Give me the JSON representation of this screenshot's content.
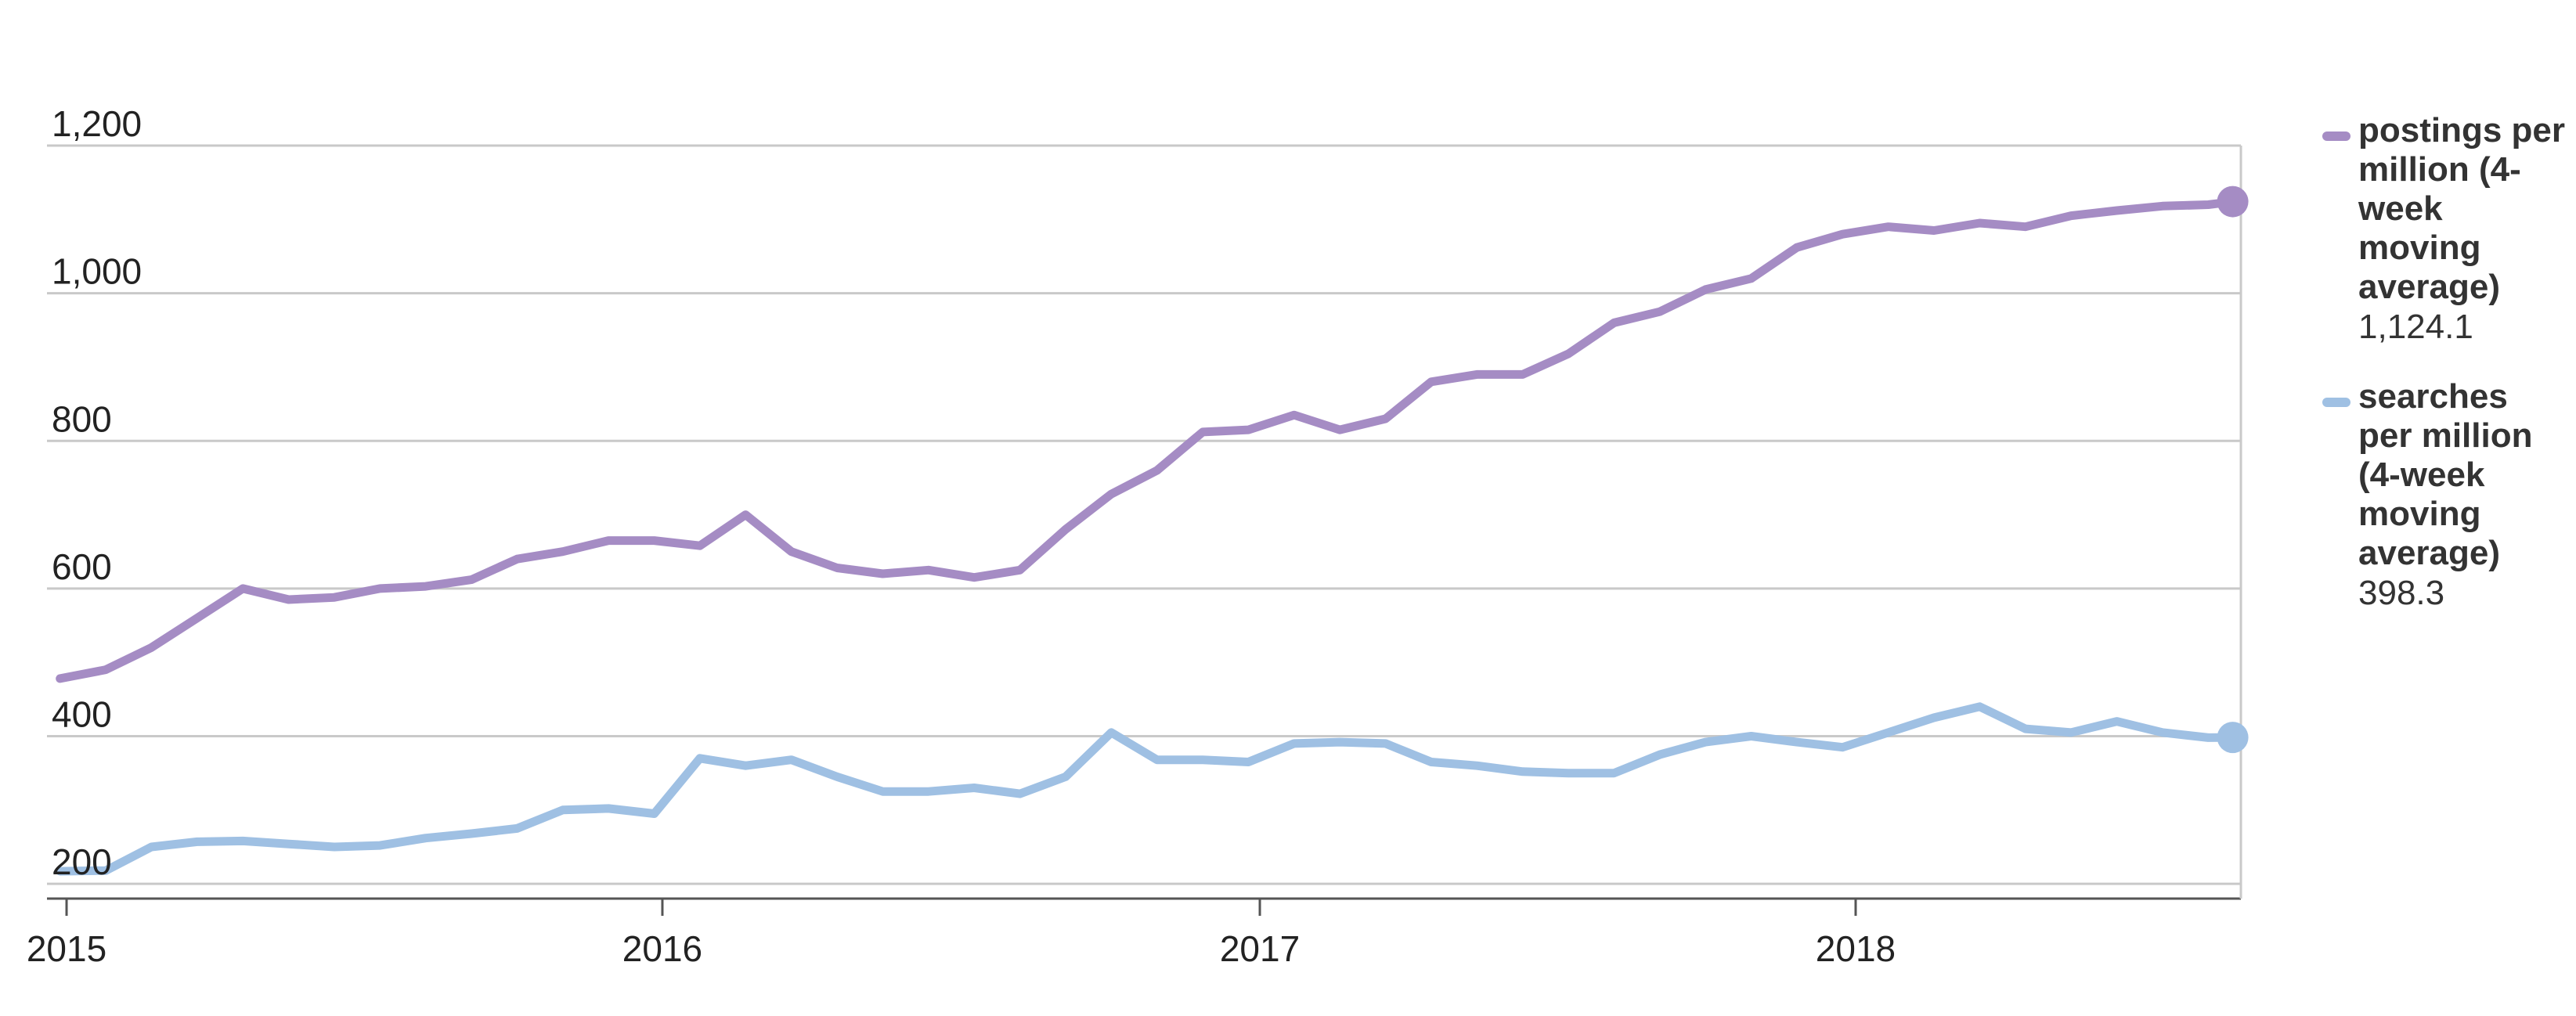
{
  "chart_data": {
    "type": "line",
    "title": "",
    "xlabel": "",
    "ylabel": "",
    "x_ticks": [
      "2015",
      "2016",
      "2017",
      "2018"
    ],
    "y_ticks": [
      "200",
      "400",
      "600",
      "800",
      "1,000",
      "1,200"
    ],
    "ylim": [
      180,
      1200
    ],
    "xlim": [
      "2014-12-20",
      "2018-08-25"
    ],
    "grid": true,
    "legend_position": "right",
    "series": [
      {
        "name": "postings per million (4-week moving average)",
        "last_value_label": "1,124.1",
        "color": "#a58cc4",
        "x": [
          "2014-12-28",
          "2015-01-25",
          "2015-02-22",
          "2015-03-22",
          "2015-04-19",
          "2015-05-17",
          "2015-06-14",
          "2015-07-12",
          "2015-08-09",
          "2015-09-06",
          "2015-10-04",
          "2015-11-01",
          "2015-11-29",
          "2015-12-27",
          "2016-01-24",
          "2016-02-21",
          "2016-03-20",
          "2016-04-17",
          "2016-05-15",
          "2016-06-12",
          "2016-07-10",
          "2016-08-07",
          "2016-09-04",
          "2016-10-02",
          "2016-10-30",
          "2016-11-27",
          "2016-12-25",
          "2017-01-22",
          "2017-02-19",
          "2017-03-19",
          "2017-04-16",
          "2017-05-14",
          "2017-06-11",
          "2017-07-09",
          "2017-08-06",
          "2017-09-03",
          "2017-10-01",
          "2017-10-29",
          "2017-11-26",
          "2017-12-24",
          "2018-01-21",
          "2018-02-18",
          "2018-03-18",
          "2018-04-15",
          "2018-05-13",
          "2018-06-10",
          "2018-07-08",
          "2018-08-05",
          "2018-08-20"
        ],
        "values": [
          478,
          490,
          520,
          560,
          600,
          585,
          588,
          600,
          603,
          612,
          640,
          650,
          665,
          665,
          658,
          700,
          650,
          628,
          620,
          625,
          615,
          625,
          680,
          728,
          760,
          812,
          815,
          835,
          815,
          830,
          880,
          890,
          890,
          918,
          960,
          975,
          1005,
          1020,
          1062,
          1080,
          1090,
          1085,
          1095,
          1090,
          1105,
          1112,
          1118,
          1120,
          1124.1
        ]
      },
      {
        "name": "searches per million (4-week moving average)",
        "last_value_label": "398.3",
        "color": "#9fc0e3",
        "x": [
          "2014-12-28",
          "2015-01-25",
          "2015-02-22",
          "2015-03-22",
          "2015-04-19",
          "2015-05-17",
          "2015-06-14",
          "2015-07-12",
          "2015-08-09",
          "2015-09-06",
          "2015-10-04",
          "2015-11-01",
          "2015-11-29",
          "2015-12-27",
          "2016-01-24",
          "2016-02-21",
          "2016-03-20",
          "2016-04-17",
          "2016-05-15",
          "2016-06-12",
          "2016-07-10",
          "2016-08-07",
          "2016-09-04",
          "2016-10-02",
          "2016-10-30",
          "2016-11-27",
          "2016-12-25",
          "2017-01-22",
          "2017-02-19",
          "2017-03-19",
          "2017-04-16",
          "2017-05-14",
          "2017-06-11",
          "2017-07-09",
          "2017-08-06",
          "2017-09-03",
          "2017-10-01",
          "2017-10-29",
          "2017-11-26",
          "2017-12-24",
          "2018-01-21",
          "2018-02-18",
          "2018-03-18",
          "2018-04-15",
          "2018-05-13",
          "2018-06-10",
          "2018-07-08",
          "2018-08-05",
          "2018-08-20"
        ],
        "values": [
          217,
          218,
          250,
          257,
          258,
          254,
          250,
          252,
          262,
          268,
          275,
          300,
          302,
          295,
          370,
          360,
          368,
          345,
          325,
          325,
          330,
          322,
          345,
          405,
          368,
          368,
          365,
          390,
          392,
          390,
          365,
          360,
          352,
          350,
          350,
          375,
          392,
          400,
          392,
          385,
          405,
          425,
          440,
          410,
          405,
          420,
          405,
          398,
          398.3
        ]
      }
    ]
  },
  "legend": {
    "postings_label": "postings per million (4-week moving average)",
    "postings_value": "1,124.1",
    "searches_label": "searches per million (4-week moving average)",
    "searches_value": "398.3"
  }
}
